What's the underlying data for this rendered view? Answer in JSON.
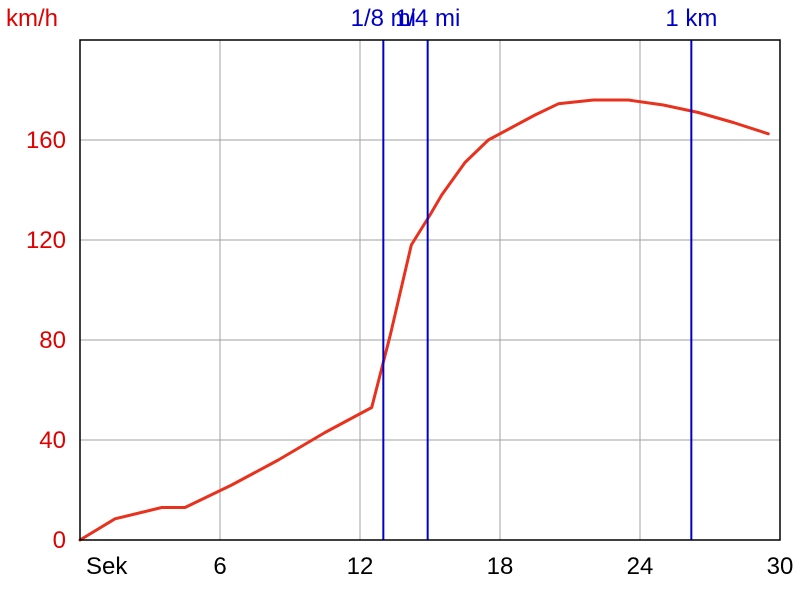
{
  "colors": {
    "axis": "#000000",
    "grid": "#a0a0a0",
    "series": "#e8321e",
    "y_text": "#e00000",
    "marker": "#0000cc",
    "background": "#ffffff"
  },
  "chart_data": {
    "type": "line",
    "title": "",
    "xlabel": "Sek",
    "ylabel": "km/h",
    "xlim": [
      0,
      30
    ],
    "ylim": [
      0,
      200
    ],
    "x_ticks": [
      6,
      12,
      18,
      24,
      30
    ],
    "y_ticks": [
      0,
      40,
      80,
      120,
      160
    ],
    "grid": true,
    "series": [
      {
        "x": [
          0,
          1.5,
          3.5,
          4.5,
          6.5,
          8.5,
          10.5,
          12.5,
          13.3,
          14.2,
          15.0,
          15.5,
          16.5,
          17.5,
          18.5,
          19.5,
          20.5,
          22.0,
          23.5,
          25.0,
          26.5,
          28.0,
          29.5
        ],
        "y": [
          0,
          8.5,
          13,
          13,
          22,
          32,
          43,
          53,
          82,
          118,
          130,
          138,
          151,
          160,
          165,
          170,
          174.5,
          176,
          176,
          174,
          171,
          167,
          162.5
        ]
      }
    ],
    "markers": [
      {
        "x": 13.0,
        "label": "1/8 mi"
      },
      {
        "x": 14.9,
        "label": "1/4 mi"
      },
      {
        "x": 26.2,
        "label": "1 km"
      }
    ]
  }
}
